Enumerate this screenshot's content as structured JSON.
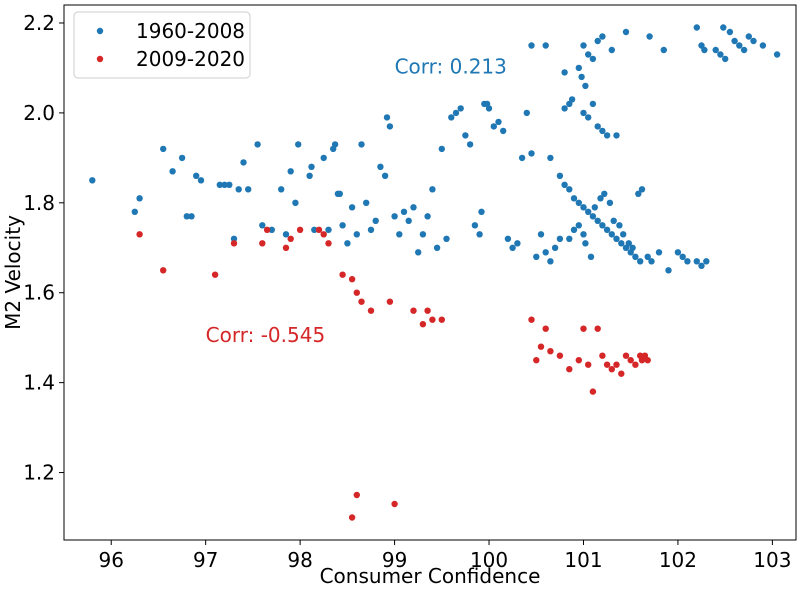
{
  "chart_data": {
    "type": "scatter",
    "title": "",
    "xlabel": "Consumer Confidence",
    "ylabel": "M2 Velocity",
    "xlim": [
      95.5,
      103.25
    ],
    "ylim": [
      1.05,
      2.24
    ],
    "xticks": [
      "96",
      "97",
      "98",
      "99",
      "100",
      "101",
      "102",
      "103"
    ],
    "yticks": [
      "1.2",
      "1.4",
      "1.6",
      "1.8",
      "2.0",
      "2.2"
    ],
    "grid": false,
    "legend_position": "top-left",
    "series": [
      {
        "name": "1960-2008",
        "color": "#1f77b4",
        "points": [
          [
            95.8,
            1.85
          ],
          [
            96.25,
            1.78
          ],
          [
            96.3,
            1.81
          ],
          [
            96.55,
            1.92
          ],
          [
            96.65,
            1.87
          ],
          [
            96.75,
            1.9
          ],
          [
            96.8,
            1.77
          ],
          [
            96.85,
            1.77
          ],
          [
            96.9,
            1.86
          ],
          [
            96.95,
            1.85
          ],
          [
            97.15,
            1.84
          ],
          [
            97.2,
            1.84
          ],
          [
            97.25,
            1.84
          ],
          [
            97.3,
            1.72
          ],
          [
            97.35,
            1.83
          ],
          [
            97.4,
            1.89
          ],
          [
            97.45,
            1.83
          ],
          [
            97.55,
            1.93
          ],
          [
            97.6,
            1.75
          ],
          [
            97.7,
            1.74
          ],
          [
            97.8,
            1.83
          ],
          [
            97.85,
            1.73
          ],
          [
            97.9,
            1.87
          ],
          [
            97.95,
            1.8
          ],
          [
            97.98,
            1.93
          ],
          [
            98.1,
            1.86
          ],
          [
            98.12,
            1.88
          ],
          [
            98.15,
            1.74
          ],
          [
            98.25,
            1.9
          ],
          [
            98.35,
            1.92
          ],
          [
            98.37,
            1.93
          ],
          [
            98.4,
            1.82
          ],
          [
            98.42,
            1.82
          ],
          [
            98.3,
            1.74
          ],
          [
            98.45,
            1.75
          ],
          [
            98.5,
            1.71
          ],
          [
            98.55,
            1.79
          ],
          [
            98.6,
            1.73
          ],
          [
            98.65,
            1.93
          ],
          [
            98.7,
            1.8
          ],
          [
            98.75,
            1.74
          ],
          [
            98.8,
            1.76
          ],
          [
            98.85,
            1.88
          ],
          [
            98.9,
            1.86
          ],
          [
            98.92,
            1.99
          ],
          [
            98.95,
            1.97
          ],
          [
            99.0,
            1.77
          ],
          [
            99.05,
            1.73
          ],
          [
            99.1,
            1.78
          ],
          [
            99.15,
            1.76
          ],
          [
            99.2,
            1.79
          ],
          [
            99.25,
            1.69
          ],
          [
            99.3,
            1.73
          ],
          [
            99.35,
            1.77
          ],
          [
            99.4,
            1.83
          ],
          [
            99.45,
            1.7
          ],
          [
            99.5,
            1.92
          ],
          [
            99.55,
            1.72
          ],
          [
            99.6,
            1.99
          ],
          [
            99.65,
            2.0
          ],
          [
            99.7,
            2.01
          ],
          [
            99.75,
            1.95
          ],
          [
            99.8,
            1.93
          ],
          [
            99.85,
            1.75
          ],
          [
            99.9,
            1.73
          ],
          [
            99.92,
            1.78
          ],
          [
            99.95,
            2.02
          ],
          [
            99.98,
            2.02
          ],
          [
            100.0,
            2.01
          ],
          [
            100.05,
            1.97
          ],
          [
            100.1,
            1.98
          ],
          [
            100.15,
            1.96
          ],
          [
            100.2,
            1.72
          ],
          [
            100.25,
            1.7
          ],
          [
            100.3,
            1.71
          ],
          [
            100.35,
            1.9
          ],
          [
            100.4,
            2.0
          ],
          [
            100.45,
            1.91
          ],
          [
            100.5,
            1.68
          ],
          [
            100.55,
            1.73
          ],
          [
            100.6,
            1.69
          ],
          [
            100.65,
            1.67
          ],
          [
            100.7,
            1.7
          ],
          [
            100.75,
            1.72
          ],
          [
            100.8,
            2.01
          ],
          [
            100.85,
            2.02
          ],
          [
            100.45,
            2.15
          ],
          [
            100.6,
            2.15
          ],
          [
            100.65,
            1.9
          ],
          [
            100.75,
            1.86
          ],
          [
            100.8,
            1.84
          ],
          [
            100.85,
            1.83
          ],
          [
            100.9,
            1.81
          ],
          [
            100.95,
            1.8
          ],
          [
            101.0,
            1.79
          ],
          [
            101.05,
            1.78
          ],
          [
            101.1,
            1.77
          ],
          [
            101.15,
            1.76
          ],
          [
            101.2,
            1.75
          ],
          [
            101.25,
            1.74
          ],
          [
            101.3,
            1.73
          ],
          [
            101.35,
            1.72
          ],
          [
            101.4,
            1.71
          ],
          [
            101.45,
            1.7
          ],
          [
            101.5,
            1.69
          ],
          [
            101.55,
            1.68
          ],
          [
            101.6,
            1.67
          ],
          [
            101.0,
            2.0
          ],
          [
            101.05,
            1.99
          ],
          [
            101.1,
            2.02
          ],
          [
            101.15,
            1.97
          ],
          [
            101.2,
            1.96
          ],
          [
            101.25,
            1.95
          ],
          [
            101.0,
            2.15
          ],
          [
            101.05,
            2.13
          ],
          [
            101.1,
            2.12
          ],
          [
            101.15,
            2.16
          ],
          [
            101.2,
            2.17
          ],
          [
            101.3,
            2.14
          ],
          [
            101.35,
            1.95
          ],
          [
            100.85,
            1.72
          ],
          [
            100.9,
            1.74
          ],
          [
            100.95,
            1.75
          ],
          [
            101.0,
            1.73
          ],
          [
            101.02,
            1.71
          ],
          [
            101.08,
            1.68
          ],
          [
            101.12,
            1.79
          ],
          [
            101.18,
            1.81
          ],
          [
            101.22,
            1.82
          ],
          [
            101.28,
            1.8
          ],
          [
            101.32,
            1.76
          ],
          [
            101.38,
            1.75
          ],
          [
            101.42,
            1.73
          ],
          [
            101.48,
            1.71
          ],
          [
            101.52,
            1.7
          ],
          [
            101.58,
            1.82
          ],
          [
            101.62,
            1.83
          ],
          [
            101.68,
            1.68
          ],
          [
            101.72,
            1.67
          ],
          [
            101.8,
            1.69
          ],
          [
            101.9,
            1.65
          ],
          [
            102.0,
            1.69
          ],
          [
            102.05,
            1.68
          ],
          [
            102.1,
            1.67
          ],
          [
            102.2,
            1.67
          ],
          [
            102.25,
            1.66
          ],
          [
            102.3,
            1.67
          ],
          [
            101.85,
            2.14
          ],
          [
            102.2,
            2.19
          ],
          [
            102.25,
            2.15
          ],
          [
            102.28,
            2.14
          ],
          [
            102.4,
            2.14
          ],
          [
            102.45,
            2.13
          ],
          [
            102.5,
            2.12
          ],
          [
            102.55,
            2.18
          ],
          [
            102.6,
            2.16
          ],
          [
            102.65,
            2.15
          ],
          [
            102.7,
            2.14
          ],
          [
            102.75,
            2.17
          ],
          [
            102.8,
            2.16
          ],
          [
            102.9,
            2.15
          ],
          [
            103.05,
            2.13
          ],
          [
            102.48,
            2.19
          ],
          [
            101.45,
            2.18
          ],
          [
            101.7,
            2.17
          ],
          [
            100.95,
            2.1
          ],
          [
            100.98,
            2.08
          ],
          [
            101.02,
            2.06
          ],
          [
            100.8,
            2.09
          ],
          [
            100.88,
            2.03
          ]
        ]
      },
      {
        "name": "2009-2020",
        "color": "#d62728",
        "points": [
          [
            96.3,
            1.73
          ],
          [
            96.55,
            1.65
          ],
          [
            97.1,
            1.64
          ],
          [
            97.3,
            1.71
          ],
          [
            97.6,
            1.71
          ],
          [
            97.65,
            1.74
          ],
          [
            97.85,
            1.7
          ],
          [
            97.9,
            1.72
          ],
          [
            98.0,
            1.74
          ],
          [
            98.2,
            1.74
          ],
          [
            98.25,
            1.73
          ],
          [
            98.3,
            1.71
          ],
          [
            98.45,
            1.64
          ],
          [
            98.55,
            1.63
          ],
          [
            98.6,
            1.6
          ],
          [
            98.65,
            1.58
          ],
          [
            98.75,
            1.56
          ],
          [
            98.95,
            1.58
          ],
          [
            99.2,
            1.56
          ],
          [
            99.3,
            1.53
          ],
          [
            99.35,
            1.56
          ],
          [
            99.4,
            1.54
          ],
          [
            99.5,
            1.54
          ],
          [
            98.55,
            1.1
          ],
          [
            98.6,
            1.15
          ],
          [
            99.0,
            1.13
          ],
          [
            100.45,
            1.54
          ],
          [
            100.5,
            1.45
          ],
          [
            100.55,
            1.48
          ],
          [
            100.6,
            1.52
          ],
          [
            100.65,
            1.47
          ],
          [
            100.75,
            1.46
          ],
          [
            100.85,
            1.43
          ],
          [
            100.95,
            1.45
          ],
          [
            101.0,
            1.52
          ],
          [
            101.05,
            1.44
          ],
          [
            101.1,
            1.38
          ],
          [
            101.15,
            1.52
          ],
          [
            101.2,
            1.46
          ],
          [
            101.25,
            1.44
          ],
          [
            101.3,
            1.43
          ],
          [
            101.35,
            1.44
          ],
          [
            101.4,
            1.42
          ],
          [
            101.45,
            1.46
          ],
          [
            101.5,
            1.45
          ],
          [
            101.55,
            1.44
          ],
          [
            101.6,
            1.46
          ],
          [
            101.62,
            1.45
          ],
          [
            101.65,
            1.46
          ],
          [
            101.68,
            1.45
          ]
        ]
      }
    ],
    "annotations": [
      {
        "text": "Corr: 0.213",
        "x": 99.0,
        "y": 2.103,
        "color": "#1f77b4"
      },
      {
        "text": "Corr: -0.545",
        "x": 97.0,
        "y": 1.506,
        "color": "#d62728"
      }
    ]
  }
}
